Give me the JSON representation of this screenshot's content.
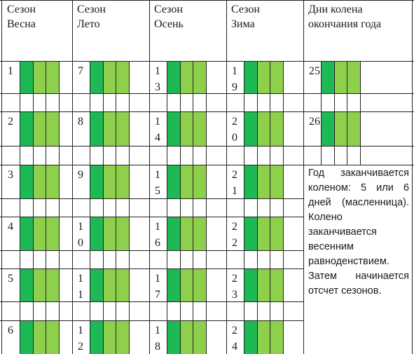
{
  "colors": {
    "dark_green": "#1db954",
    "light_green": "#8ed04c",
    "line": "#222222"
  },
  "headers": [
    {
      "line1": "Сезон",
      "line2": "Весна"
    },
    {
      "line1": "Сезон",
      "line2": "Лето"
    },
    {
      "line1": "Сезон",
      "line2": "Осень"
    },
    {
      "line1": "Сезон",
      "line2": "Зима"
    },
    {
      "line1": "Дни колена окончания года"
    }
  ],
  "rows": [
    [
      [
        "1"
      ],
      [
        "7"
      ],
      [
        "1",
        "3"
      ],
      [
        "1",
        "9"
      ],
      [
        "25"
      ]
    ],
    [
      [
        "2"
      ],
      [
        "8"
      ],
      [
        "1",
        "4"
      ],
      [
        "2",
        "0"
      ],
      [
        "26"
      ]
    ],
    [
      [
        "3"
      ],
      [
        "9"
      ],
      [
        "1",
        "5"
      ],
      [
        "2",
        "1"
      ],
      []
    ],
    [
      [
        "4"
      ],
      [
        "1",
        "0"
      ],
      [
        "1",
        "6"
      ],
      [
        "2",
        "2"
      ],
      []
    ],
    [
      [
        "5"
      ],
      [
        "1",
        "1"
      ],
      [
        "1",
        "7"
      ],
      [
        "2",
        "3"
      ],
      []
    ],
    [
      [
        "6"
      ],
      [
        "1",
        "2"
      ],
      [
        "1",
        "8"
      ],
      [
        "2",
        "4"
      ],
      []
    ]
  ],
  "note": "Год заканчивается коленом: 5 или 6 дней (масленница). Колено заканчивается весенним равноденствием. Затем начинается отсчет сезонов."
}
